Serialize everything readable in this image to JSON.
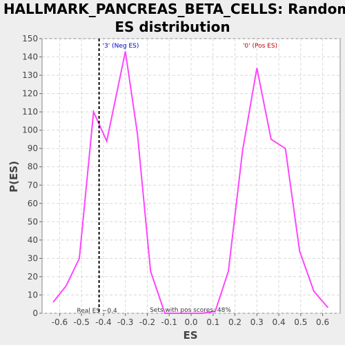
{
  "chart_data": {
    "type": "line",
    "title_line1": "HALLMARK_PANCREAS_BETA_CELLS: Random",
    "title_line2": "ES distribution",
    "xlabel": "ES",
    "ylabel": "P(ES)",
    "xlim": [
      -0.68,
      0.68
    ],
    "ylim": [
      0,
      150
    ],
    "xticks": [
      -0.6,
      -0.5,
      -0.4,
      -0.3,
      -0.2,
      -0.1,
      0.0,
      0.1,
      0.2,
      0.3,
      0.4,
      0.5,
      0.6
    ],
    "yticks": [
      0,
      10,
      20,
      30,
      40,
      50,
      60,
      70,
      80,
      90,
      100,
      110,
      120,
      130,
      140,
      150
    ],
    "grid": true,
    "series": [
      {
        "color": "#ff44ff",
        "points": [
          [
            -0.63,
            6
          ],
          [
            -0.57,
            15
          ],
          [
            -0.51,
            30
          ],
          [
            -0.445,
            110
          ],
          [
            -0.385,
            94
          ],
          [
            -0.3,
            143
          ],
          [
            -0.245,
            98
          ],
          [
            -0.185,
            23
          ],
          [
            -0.12,
            0
          ],
          [
            -0.05,
            0
          ],
          [
            0.0,
            0
          ],
          [
            0.05,
            0
          ],
          [
            0.11,
            1
          ],
          [
            0.17,
            23
          ],
          [
            0.235,
            89
          ],
          [
            0.3,
            134
          ],
          [
            0.365,
            95
          ],
          [
            0.43,
            90
          ],
          [
            0.495,
            34
          ],
          [
            0.56,
            12
          ],
          [
            0.625,
            3
          ]
        ]
      }
    ],
    "real_es": -0.42,
    "real_es_label": "Real ES −0.4",
    "neg_label": "'3' (Neg ES)",
    "pos_label": "'0' (Pos ES)",
    "neg_color": "#0000cc",
    "pos_color": "#cc0000",
    "annotation": "Sets with pos scores: 48%"
  }
}
